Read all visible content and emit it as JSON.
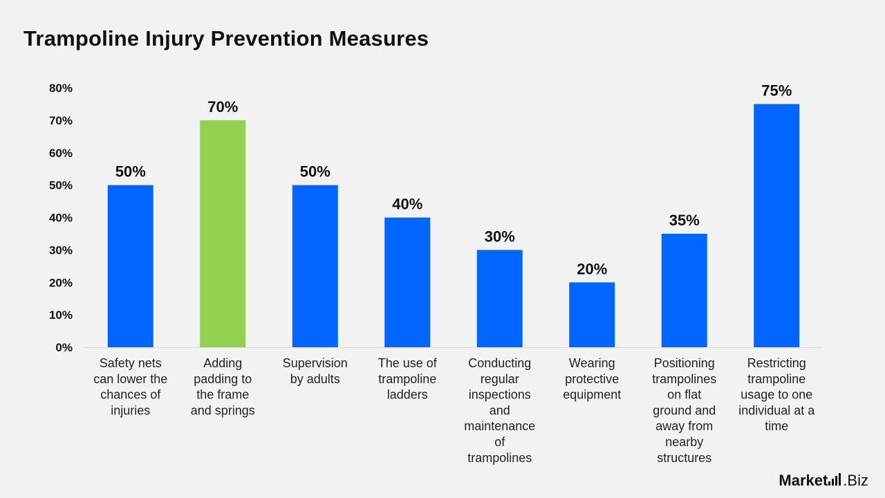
{
  "title": "Trampoline Injury Prevention Measures",
  "brand": {
    "name_part1": "Market",
    "name_part2": ".Biz"
  },
  "colors": {
    "primary": "#0066ff",
    "highlight": "#92d050"
  },
  "chart_data": {
    "type": "bar",
    "title": "Trampoline Injury Prevention Measures",
    "xlabel": "",
    "ylabel": "",
    "ylim": [
      0,
      80
    ],
    "y_ticks": [
      "0%",
      "10%",
      "20%",
      "30%",
      "40%",
      "50%",
      "60%",
      "70%",
      "80%"
    ],
    "grid": false,
    "categories": [
      [
        "Safety nets",
        "can lower the",
        "chances of",
        "injuries"
      ],
      [
        "Adding",
        "padding to",
        "the frame",
        "and springs"
      ],
      [
        "Supervision",
        "by adults"
      ],
      [
        "The use of",
        "trampoline",
        "ladders"
      ],
      [
        "Conducting",
        "regular",
        "inspections",
        "and",
        "maintenance",
        "of",
        "trampolines"
      ],
      [
        "Wearing",
        "protective",
        "equipment"
      ],
      [
        "Positioning",
        "trampolines",
        "on flat",
        "ground and",
        "away from",
        "nearby",
        "structures"
      ],
      [
        "Restricting",
        "trampoline",
        "usage to one",
        "individual at a",
        "time"
      ]
    ],
    "values": [
      50,
      70,
      50,
      40,
      30,
      20,
      35,
      75
    ],
    "value_labels": [
      "50%",
      "70%",
      "50%",
      "40%",
      "30%",
      "20%",
      "35%",
      "75%"
    ],
    "highlight_index": 1
  }
}
